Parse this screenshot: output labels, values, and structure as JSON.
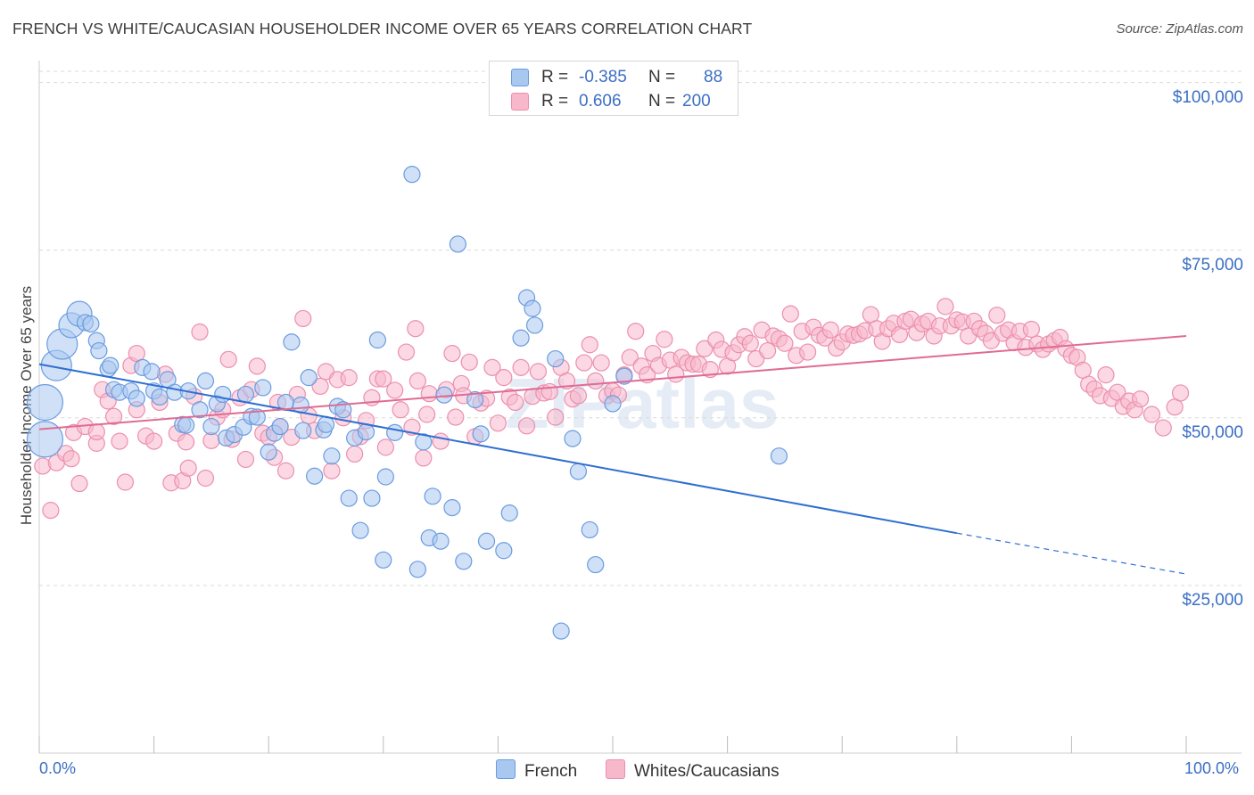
{
  "title": "FRENCH VS WHITE/CAUCASIAN HOUSEHOLDER INCOME OVER 65 YEARS CORRELATION CHART",
  "source": "Source: ZipAtlas.com",
  "watermark": "ZIPatlas",
  "legend": {
    "french": {
      "r_label": "R =",
      "r_value": "-0.385",
      "n_label": "N =",
      "n_value": "88"
    },
    "whites": {
      "r_label": "R =",
      "r_value": "0.606",
      "n_label": "N =",
      "n_value": "200"
    }
  },
  "bottom_legend": {
    "french": "French",
    "whites": "Whites/Caucasians"
  },
  "colors": {
    "french_fill": "#a9c8f0",
    "french_stroke": "#6a9be0",
    "french_line": "#2f6fd1",
    "whites_fill": "#f7b8cc",
    "whites_stroke": "#ec8fae",
    "whites_line": "#e06b94",
    "tick_text": "#3b6fc4",
    "grid": "#d9d9d9"
  },
  "chart_data": {
    "type": "scatter",
    "xlabel": "",
    "ylabel": "Householder Income Over 65 years",
    "x_tick_labels": [
      "0.0%",
      "100.0%"
    ],
    "y_tick_labels": [
      "$25,000",
      "$50,000",
      "$75,000",
      "$100,000"
    ],
    "y_ticks": [
      25000,
      50000,
      75000,
      100000
    ],
    "xlim": [
      0,
      100
    ],
    "ylim": [
      0,
      103000
    ],
    "grid": true,
    "legend_position": "top-center",
    "series": [
      {
        "name": "French",
        "points": [
          [
            0.5,
            46800
          ],
          [
            0.5,
            52300
          ],
          [
            1.5,
            57800
          ],
          [
            2,
            61000
          ],
          [
            2.8,
            63800
          ],
          [
            3.5,
            65500
          ],
          [
            4,
            64200
          ],
          [
            4.5,
            64000
          ],
          [
            5,
            61500
          ],
          [
            5.2,
            60000
          ],
          [
            6,
            57300
          ],
          [
            6.2,
            57800
          ],
          [
            6.5,
            54200
          ],
          [
            7,
            53800
          ],
          [
            8,
            54000
          ],
          [
            8.5,
            52900
          ],
          [
            9,
            57500
          ],
          [
            9.8,
            56900
          ],
          [
            10,
            54000
          ],
          [
            10.5,
            53100
          ],
          [
            11.2,
            55700
          ],
          [
            11.8,
            53800
          ],
          [
            12.5,
            49000
          ],
          [
            12.8,
            48900
          ],
          [
            13,
            54000
          ],
          [
            14,
            51200
          ],
          [
            14.5,
            55500
          ],
          [
            15,
            48700
          ],
          [
            15.5,
            52100
          ],
          [
            16,
            53500
          ],
          [
            16.3,
            47000
          ],
          [
            17,
            47500
          ],
          [
            17.8,
            48600
          ],
          [
            18,
            53500
          ],
          [
            18.5,
            50200
          ],
          [
            19,
            50100
          ],
          [
            19.5,
            54500
          ],
          [
            20,
            44900
          ],
          [
            20.5,
            47700
          ],
          [
            21,
            48700
          ],
          [
            21.5,
            52300
          ],
          [
            22,
            61300
          ],
          [
            22.8,
            51900
          ],
          [
            23,
            48100
          ],
          [
            23.5,
            56000
          ],
          [
            24,
            41300
          ],
          [
            24.8,
            48200
          ],
          [
            25,
            49000
          ],
          [
            25.5,
            44300
          ],
          [
            26,
            51700
          ],
          [
            26.5,
            51200
          ],
          [
            27,
            38000
          ],
          [
            27.5,
            47000
          ],
          [
            28,
            33200
          ],
          [
            28.5,
            47900
          ],
          [
            29,
            38000
          ],
          [
            29.5,
            61600
          ],
          [
            30,
            28800
          ],
          [
            30.2,
            41200
          ],
          [
            31,
            47800
          ],
          [
            32.5,
            86300
          ],
          [
            33,
            27400
          ],
          [
            33.5,
            46400
          ],
          [
            34,
            32100
          ],
          [
            34.3,
            38300
          ],
          [
            35,
            31600
          ],
          [
            35.3,
            53400
          ],
          [
            36,
            36600
          ],
          [
            36.5,
            75900
          ],
          [
            37,
            28600
          ],
          [
            38,
            52700
          ],
          [
            38.5,
            47600
          ],
          [
            39,
            31600
          ],
          [
            40.5,
            30200
          ],
          [
            41,
            35800
          ],
          [
            42,
            61900
          ],
          [
            42.5,
            67900
          ],
          [
            43,
            66300
          ],
          [
            43.2,
            63800
          ],
          [
            45,
            58800
          ],
          [
            45.5,
            18200
          ],
          [
            46.5,
            46900
          ],
          [
            47,
            42000
          ],
          [
            48,
            33300
          ],
          [
            48.5,
            28100
          ],
          [
            50,
            52100
          ],
          [
            51,
            56200
          ],
          [
            64.5,
            44300
          ]
        ],
        "trend": {
          "x_start": 0,
          "y_start": 58000,
          "x_solid_end": 80,
          "y_solid_end": 32800,
          "x_dash_end": 100,
          "y_dash_end": 26700
        }
      },
      {
        "name": "Whites/Caucasians",
        "points": [
          [
            0.3,
            42800
          ],
          [
            1,
            36200
          ],
          [
            1.5,
            43300
          ],
          [
            2.3,
            44700
          ],
          [
            2.8,
            43900
          ],
          [
            3,
            47800
          ],
          [
            3.5,
            40200
          ],
          [
            4,
            48700
          ],
          [
            5,
            46200
          ],
          [
            5,
            47900
          ],
          [
            5.5,
            54200
          ],
          [
            6,
            52500
          ],
          [
            6.5,
            50200
          ],
          [
            7,
            46500
          ],
          [
            7.5,
            40400
          ],
          [
            8,
            57800
          ],
          [
            8.5,
            59600
          ],
          [
            8.5,
            51200
          ],
          [
            9.3,
            47300
          ],
          [
            10,
            46500
          ],
          [
            10.5,
            52300
          ],
          [
            11,
            56500
          ],
          [
            11.5,
            40300
          ],
          [
            12,
            47700
          ],
          [
            12.5,
            40600
          ],
          [
            12.8,
            46400
          ],
          [
            13,
            42500
          ],
          [
            13.5,
            53200
          ],
          [
            14,
            62800
          ],
          [
            14.5,
            41000
          ],
          [
            15,
            46600
          ],
          [
            15.5,
            50100
          ],
          [
            16,
            51200
          ],
          [
            16.5,
            58700
          ],
          [
            16.8,
            46800
          ],
          [
            17.5,
            53000
          ],
          [
            18,
            43800
          ],
          [
            18.5,
            54200
          ],
          [
            19,
            57700
          ],
          [
            19.5,
            47700
          ],
          [
            20,
            47100
          ],
          [
            20.5,
            44100
          ],
          [
            20.8,
            52300
          ],
          [
            21,
            48700
          ],
          [
            21.5,
            42100
          ],
          [
            22,
            47100
          ],
          [
            22.5,
            53500
          ],
          [
            23,
            64800
          ],
          [
            23.5,
            50300
          ],
          [
            24,
            48100
          ],
          [
            24.5,
            54700
          ],
          [
            25,
            56900
          ],
          [
            25.5,
            42100
          ],
          [
            26,
            55700
          ],
          [
            26.5,
            50000
          ],
          [
            27,
            56000
          ],
          [
            27.5,
            44600
          ],
          [
            28,
            47200
          ],
          [
            28.5,
            49600
          ],
          [
            29,
            53000
          ],
          [
            29.5,
            55800
          ],
          [
            30,
            55800
          ],
          [
            30.2,
            45600
          ],
          [
            31,
            54100
          ],
          [
            31.5,
            51200
          ],
          [
            32,
            59800
          ],
          [
            32.5,
            48600
          ],
          [
            32.8,
            63300
          ],
          [
            33,
            55500
          ],
          [
            33.5,
            44000
          ],
          [
            33.8,
            50500
          ],
          [
            34,
            53600
          ],
          [
            35,
            46500
          ],
          [
            35.5,
            54200
          ],
          [
            36,
            59600
          ],
          [
            36.3,
            50100
          ],
          [
            36.8,
            55100
          ],
          [
            37,
            53300
          ],
          [
            37.5,
            58300
          ],
          [
            38,
            47200
          ],
          [
            38.5,
            52200
          ],
          [
            39,
            52900
          ],
          [
            39.5,
            57500
          ],
          [
            40,
            49200
          ],
          [
            40.5,
            56000
          ],
          [
            41,
            53100
          ],
          [
            41.5,
            52300
          ],
          [
            42,
            57500
          ],
          [
            42.5,
            48800
          ],
          [
            43,
            53200
          ],
          [
            43.5,
            56900
          ],
          [
            44,
            53700
          ],
          [
            44.5,
            53900
          ],
          [
            45,
            50100
          ],
          [
            45.5,
            57500
          ],
          [
            46,
            55500
          ],
          [
            46.5,
            52800
          ],
          [
            47,
            53300
          ],
          [
            47.5,
            58200
          ],
          [
            48,
            60900
          ],
          [
            48.5,
            55500
          ],
          [
            49,
            58200
          ],
          [
            49.5,
            53300
          ],
          [
            50,
            54000
          ],
          [
            50.5,
            53400
          ],
          [
            51,
            56400
          ],
          [
            51.5,
            59000
          ],
          [
            52,
            62900
          ],
          [
            52.5,
            57700
          ],
          [
            53,
            56400
          ],
          [
            53.5,
            59600
          ],
          [
            54,
            57800
          ],
          [
            54.5,
            61700
          ],
          [
            55,
            58600
          ],
          [
            55.5,
            56500
          ],
          [
            56,
            59000
          ],
          [
            56.5,
            58200
          ],
          [
            57,
            58000
          ],
          [
            57.5,
            58000
          ],
          [
            58,
            60300
          ],
          [
            58.5,
            57200
          ],
          [
            59,
            61600
          ],
          [
            59.5,
            60200
          ],
          [
            60,
            57700
          ],
          [
            60.5,
            59700
          ],
          [
            61,
            60900
          ],
          [
            61.5,
            62100
          ],
          [
            62,
            61100
          ],
          [
            62.5,
            58800
          ],
          [
            63,
            63100
          ],
          [
            63.5,
            60000
          ],
          [
            64,
            62200
          ],
          [
            64.5,
            61800
          ],
          [
            65,
            61100
          ],
          [
            65.5,
            65500
          ],
          [
            66,
            59300
          ],
          [
            66.5,
            62900
          ],
          [
            67,
            59800
          ],
          [
            67.5,
            63500
          ],
          [
            68,
            62300
          ],
          [
            68.5,
            61900
          ],
          [
            69,
            63100
          ],
          [
            69.5,
            60400
          ],
          [
            70,
            61300
          ],
          [
            70.5,
            62500
          ],
          [
            71,
            62300
          ],
          [
            71.5,
            62500
          ],
          [
            72,
            63000
          ],
          [
            72.5,
            65400
          ],
          [
            73,
            63300
          ],
          [
            73.5,
            61400
          ],
          [
            74,
            63300
          ],
          [
            74.5,
            64100
          ],
          [
            75,
            62400
          ],
          [
            75.5,
            64400
          ],
          [
            76,
            64700
          ],
          [
            76.5,
            62700
          ],
          [
            77,
            64000
          ],
          [
            77.5,
            64400
          ],
          [
            78,
            62200
          ],
          [
            78.5,
            63700
          ],
          [
            79,
            66600
          ],
          [
            79.5,
            63700
          ],
          [
            80,
            64600
          ],
          [
            80.5,
            64300
          ],
          [
            81,
            62200
          ],
          [
            81.5,
            64400
          ],
          [
            82,
            63300
          ],
          [
            82.5,
            62600
          ],
          [
            83,
            61500
          ],
          [
            83.5,
            65300
          ],
          [
            84,
            62600
          ],
          [
            84.5,
            63100
          ],
          [
            85,
            61200
          ],
          [
            85.5,
            62900
          ],
          [
            86,
            60500
          ],
          [
            86.5,
            63200
          ],
          [
            87,
            61000
          ],
          [
            87.5,
            60200
          ],
          [
            88,
            61000
          ],
          [
            88.5,
            61500
          ],
          [
            89,
            62000
          ],
          [
            89.5,
            60300
          ],
          [
            90,
            59300
          ],
          [
            90.5,
            59000
          ],
          [
            91,
            57100
          ],
          [
            91.5,
            55000
          ],
          [
            92,
            54300
          ],
          [
            92.5,
            53300
          ],
          [
            93,
            56400
          ],
          [
            93.5,
            52900
          ],
          [
            94,
            53800
          ],
          [
            94.5,
            51700
          ],
          [
            95,
            52500
          ],
          [
            95.5,
            51200
          ],
          [
            96,
            52800
          ],
          [
            97,
            50500
          ],
          [
            98,
            48500
          ],
          [
            99,
            51600
          ],
          [
            99.5,
            53700
          ]
        ],
        "trend": {
          "x_start": 0,
          "y_start": 48300,
          "x_end": 100,
          "y_end": 62200
        }
      }
    ]
  }
}
